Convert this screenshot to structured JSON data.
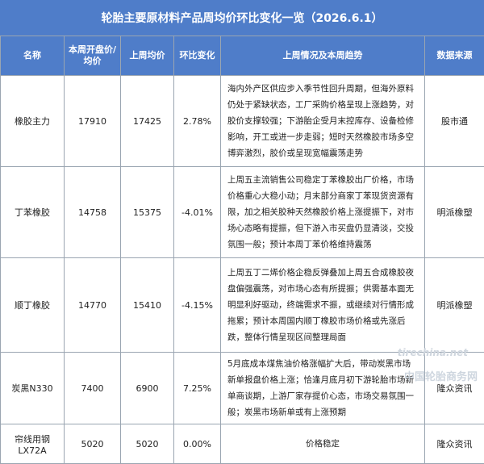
{
  "title": "轮胎主要原材料产品周均价环比变化一览（2026.6.1）",
  "headers": [
    "名称",
    "本周开盘价/均价",
    "上周均价",
    "环比变化",
    "上周情况及本周趋势",
    "数据来源"
  ],
  "rows": [
    {
      "name": "橡胶主力",
      "current": "17910",
      "last": "17425",
      "change": "2.78%",
      "trend": "海内外产区供应步入季节性回升周期，但海外原料仍处于紧缺状态，工厂采购价格呈现上涨趋势，对胶价支撑较强；下游胎企受月末控库存、设备检修影响，开工或进一步走弱；短时天然橡胶市场多空博弈激烈，胶价或呈现宽幅震荡走势",
      "source": "股市通"
    },
    {
      "name": "丁苯橡胶",
      "current": "14758",
      "last": "15375",
      "change": "-4.01%",
      "trend": "上周五主流销售公司稳定丁苯橡胶出厂价格，市场价格重心大稳小动；月末部分商家丁苯现货资源有限，加之相关胶种天然橡胶价格上涨提振下，对市场心态略有提振，但下游入市买盘仍显清淡，交投氛围一般；预计本周丁苯价格维持震荡",
      "source": "明派橡塑"
    },
    {
      "name": "顺丁橡胶",
      "current": "14770",
      "last": "15410",
      "change": "-4.15%",
      "trend": "上周五丁二烯价格企稳反弹叠加上周五合成橡胶夜盘偏强震荡，对市场心态有所提振；供需基本面无明显利好驱动，终端需求不振，或继续对行情形成拖累；预计本周国内顺丁橡胶市场价格或先涨后跌，整体行情呈现区间整理局面",
      "source": "明派橡塑"
    },
    {
      "name": "炭黑N330",
      "current": "7400",
      "last": "6900",
      "change": "7.25%",
      "trend": "5月底成本煤焦油价格涨幅扩大后，带动炭黑市场新单报盘价格上涨；恰逢月底月初下游轮胎市场新单商谈期，上游厂家存提价心态，市场交易氛围一般；炭黑市场新单或有上涨预期",
      "source": "隆众资讯"
    },
    {
      "name": "帘线用钢LX72A",
      "current": "5020",
      "last": "5020",
      "change": "0.00%",
      "trend": "价格稳定",
      "source": "隆众资讯"
    }
  ],
  "watermark": {
    "url": "tirechina.net",
    "text": "中国轮胎商务网"
  }
}
